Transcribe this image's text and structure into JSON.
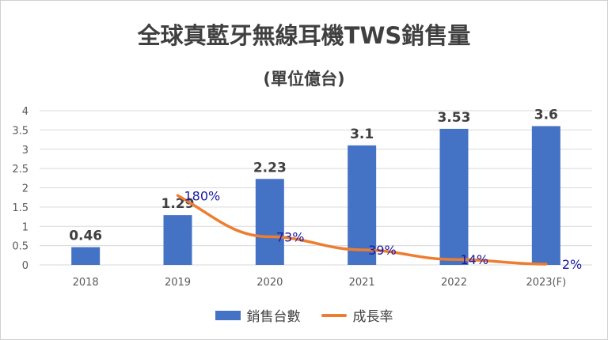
{
  "chart_data": {
    "type": "bar",
    "title": "全球真藍牙無線耳機TWS銷售量",
    "subtitle": "(單位億台)",
    "categories": [
      "2018",
      "2019",
      "2020",
      "2021",
      "2022",
      "2023(F)"
    ],
    "ylim": [
      0,
      4
    ],
    "yticks": [
      "0",
      "0.5",
      "1",
      "1.5",
      "2",
      "2.5",
      "3",
      "3.5",
      "4"
    ],
    "grid": true,
    "legend_position": "bottom",
    "series": [
      {
        "name": "銷售台數",
        "type": "bar",
        "color": "#4472c4",
        "values": [
          0.46,
          1.29,
          2.23,
          3.1,
          3.53,
          3.6
        ],
        "labels": [
          "0.46",
          "1.29",
          "2.23",
          "3.1",
          "3.53",
          "3.6"
        ]
      },
      {
        "name": "成長率",
        "type": "line",
        "color": "#ed7d31",
        "values_percent": [
          null,
          180,
          73,
          39,
          14,
          2
        ],
        "labels": [
          "",
          "180%",
          "73%",
          "39%",
          "14%",
          "2%"
        ]
      }
    ]
  }
}
